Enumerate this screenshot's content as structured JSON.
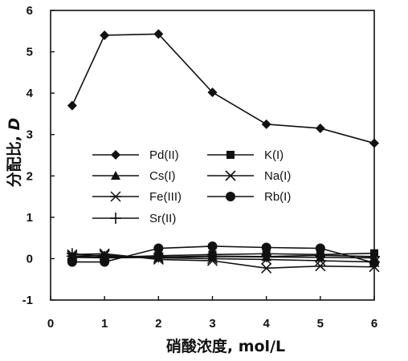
{
  "chart_data": {
    "type": "line",
    "title": "",
    "xlabel": "硝酸浓度, mol/L",
    "ylabel_cn": "分配比, ",
    "ylabel_var": "D",
    "xlim": [
      0,
      6
    ],
    "ylim": [
      -1,
      6
    ],
    "x_ticks": [
      0,
      1,
      2,
      3,
      4,
      5,
      6
    ],
    "y_ticks": [
      -1,
      0,
      1,
      2,
      3,
      4,
      5,
      6
    ],
    "grid": false,
    "legend_position": "middle-left",
    "x": [
      0.4,
      1,
      2,
      3,
      4,
      5,
      6
    ],
    "series": [
      {
        "name": "Pd(II)",
        "marker": "diamond",
        "values": [
          3.7,
          5.4,
          5.43,
          4.02,
          3.25,
          3.15,
          2.79
        ]
      },
      {
        "name": "K(I)",
        "marker": "square",
        "values": [
          0.05,
          0.03,
          0.07,
          0.1,
          0.12,
          0.1,
          0.13
        ]
      },
      {
        "name": "Cs(I)",
        "marker": "triangle",
        "values": [
          0.03,
          0.02,
          0.03,
          0.05,
          0.04,
          0.03,
          0.02
        ]
      },
      {
        "name": "Na(I)",
        "marker": "x",
        "values": [
          0.1,
          0.12,
          -0.02,
          -0.05,
          -0.23,
          -0.18,
          -0.2
        ]
      },
      {
        "name": "Fe(III)",
        "marker": "asterisk",
        "values": [
          0.06,
          0.08,
          0.02,
          0.0,
          -0.02,
          -0.05,
          -0.08
        ]
      },
      {
        "name": "Rb(I)",
        "marker": "circle",
        "values": [
          -0.08,
          -0.08,
          0.25,
          0.3,
          0.27,
          0.25,
          -0.1
        ]
      },
      {
        "name": "Sr(II)",
        "marker": "plus",
        "values": [
          0.12,
          0.05,
          0.04,
          0.06,
          0.05,
          0.08,
          0.05
        ]
      }
    ]
  }
}
